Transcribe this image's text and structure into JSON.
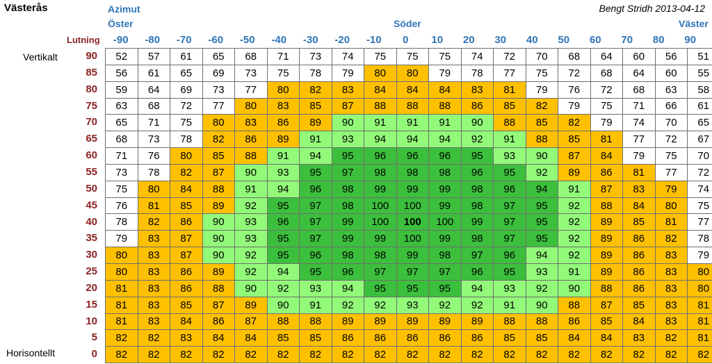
{
  "header": {
    "title": "Västerås",
    "credit": "Bengt Stridh 2013-04-12",
    "azimuth_label": "Azimut",
    "east_label": "Öster",
    "south_label": "Söder",
    "west_label": "Väster",
    "tilt_label": "Lutning",
    "vertical_label": "Vertikalt",
    "horizontal_label": "Horisontellt"
  },
  "colors": {
    "white": "#ffffff",
    "orange": "#ffc000",
    "light_green": "#92f979",
    "dark_green": "#3cbf3c",
    "azimuth_text": "#2e75b6",
    "tilt_text": "#8b2323"
  },
  "azimuths": [
    "-90",
    "-80",
    "-70",
    "-60",
    "-50",
    "-40",
    "-30",
    "-20",
    "-10",
    "0",
    "10",
    "20",
    "30",
    "40",
    "50",
    "60",
    "70",
    "80",
    "90"
  ],
  "tilts": [
    "90",
    "85",
    "80",
    "75",
    "70",
    "65",
    "60",
    "55",
    "50",
    "45",
    "40",
    "35",
    "30",
    "25",
    "20",
    "15",
    "10",
    "5",
    "0"
  ],
  "chart_data": {
    "type": "heatmap",
    "x_label": "Azimut",
    "y_label": "Lutning",
    "x": [
      -90,
      -80,
      -70,
      -60,
      -50,
      -40,
      -30,
      -20,
      -10,
      0,
      10,
      20,
      30,
      40,
      50,
      60,
      70,
      80,
      90
    ],
    "y": [
      90,
      85,
      80,
      75,
      70,
      65,
      60,
      55,
      50,
      45,
      40,
      35,
      30,
      25,
      20,
      15,
      10,
      5,
      0
    ],
    "values": [
      [
        52,
        57,
        61,
        65,
        68,
        71,
        73,
        74,
        75,
        75,
        75,
        74,
        72,
        70,
        68,
        64,
        60,
        56,
        51
      ],
      [
        56,
        61,
        65,
        69,
        73,
        75,
        78,
        79,
        80,
        80,
        79,
        78,
        77,
        75,
        72,
        68,
        64,
        60,
        55
      ],
      [
        59,
        64,
        69,
        73,
        77,
        80,
        82,
        83,
        84,
        84,
        84,
        83,
        81,
        79,
        76,
        72,
        68,
        63,
        58
      ],
      [
        63,
        68,
        72,
        77,
        80,
        83,
        85,
        87,
        88,
        88,
        88,
        86,
        85,
        82,
        79,
        75,
        71,
        66,
        61
      ],
      [
        65,
        71,
        75,
        80,
        83,
        86,
        89,
        90,
        91,
        91,
        91,
        90,
        88,
        85,
        82,
        79,
        74,
        70,
        65
      ],
      [
        68,
        73,
        78,
        82,
        86,
        89,
        91,
        93,
        94,
        94,
        94,
        92,
        91,
        88,
        85,
        81,
        77,
        72,
        67
      ],
      [
        71,
        76,
        80,
        85,
        88,
        91,
        94,
        95,
        96,
        96,
        96,
        95,
        93,
        90,
        87,
        84,
        79,
        75,
        70
      ],
      [
        73,
        78,
        82,
        87,
        90,
        93,
        95,
        97,
        98,
        98,
        98,
        96,
        95,
        92,
        89,
        86,
        81,
        77,
        72
      ],
      [
        75,
        80,
        84,
        88,
        91,
        94,
        96,
        98,
        99,
        99,
        99,
        98,
        96,
        94,
        91,
        87,
        83,
        79,
        74
      ],
      [
        76,
        81,
        85,
        89,
        92,
        95,
        97,
        98,
        100,
        100,
        99,
        98,
        97,
        95,
        92,
        88,
        84,
        80,
        75
      ],
      [
        78,
        82,
        86,
        90,
        93,
        96,
        97,
        99,
        100,
        100,
        100,
        99,
        97,
        95,
        92,
        89,
        85,
        81,
        77
      ],
      [
        79,
        83,
        87,
        90,
        93,
        95,
        97,
        99,
        99,
        100,
        99,
        98,
        97,
        95,
        92,
        89,
        86,
        82,
        78
      ],
      [
        80,
        83,
        87,
        90,
        92,
        95,
        96,
        98,
        98,
        99,
        98,
        97,
        96,
        94,
        92,
        89,
        86,
        83,
        79
      ],
      [
        80,
        83,
        86,
        89,
        92,
        94,
        95,
        96,
        97,
        97,
        97,
        96,
        95,
        93,
        91,
        89,
        86,
        83,
        80
      ],
      [
        81,
        83,
        86,
        88,
        90,
        92,
        93,
        94,
        95,
        95,
        95,
        94,
        93,
        92,
        90,
        88,
        86,
        83,
        80
      ],
      [
        81,
        83,
        85,
        87,
        89,
        90,
        91,
        92,
        92,
        93,
        92,
        92,
        91,
        90,
        88,
        87,
        85,
        83,
        81
      ],
      [
        81,
        83,
        84,
        86,
        87,
        88,
        88,
        89,
        89,
        89,
        89,
        89,
        88,
        88,
        86,
        85,
        84,
        83,
        81
      ],
      [
        82,
        82,
        83,
        84,
        84,
        85,
        85,
        86,
        86,
        86,
        86,
        86,
        85,
        85,
        84,
        84,
        83,
        82,
        81
      ],
      [
        82,
        82,
        82,
        82,
        82,
        82,
        82,
        82,
        82,
        82,
        82,
        82,
        82,
        82,
        82,
        82,
        82,
        82,
        82
      ]
    ],
    "bold_cell": {
      "x": 0,
      "y": 40
    },
    "color_classes": [
      "WWWWWWWWWWWWWWWWWWW",
      "WWWWWWWWOOWWWWWWWWW",
      "WWWWWOOOOOOOOWWWWWW",
      "WWWWOOOOOOOOOOWWWWW",
      "WWWOOOOLLLLLOOOWWWW",
      "WWWOOOLLLLLLLOOOWWW",
      "WWOOOLLDDDDDLLOOWWW",
      "WWOOLLDDDDDDDLOOOWW",
      "WOOOLLDDDDDDDDLOOOW",
      "WOOOLDDDDDDDDDLOOOW",
      "WOOLLDDDDDDDDDLOOOW",
      "WOOLLDDDDDDDDDLOOOW",
      "OOOLLDDDDDDDDLLOOOW",
      "OOOOLLDDDDDDDLLOOOO",
      "OOOOLLLLDDDLLLLOOOO",
      "OOOOOLLLLLLLLLOOOOO",
      "OOOOOOOOOOOOOOOOOOO",
      "OOOOOOOOOOOOOOOOOOO",
      "OOOOOOOOOOOOOOOOOOO"
    ]
  }
}
